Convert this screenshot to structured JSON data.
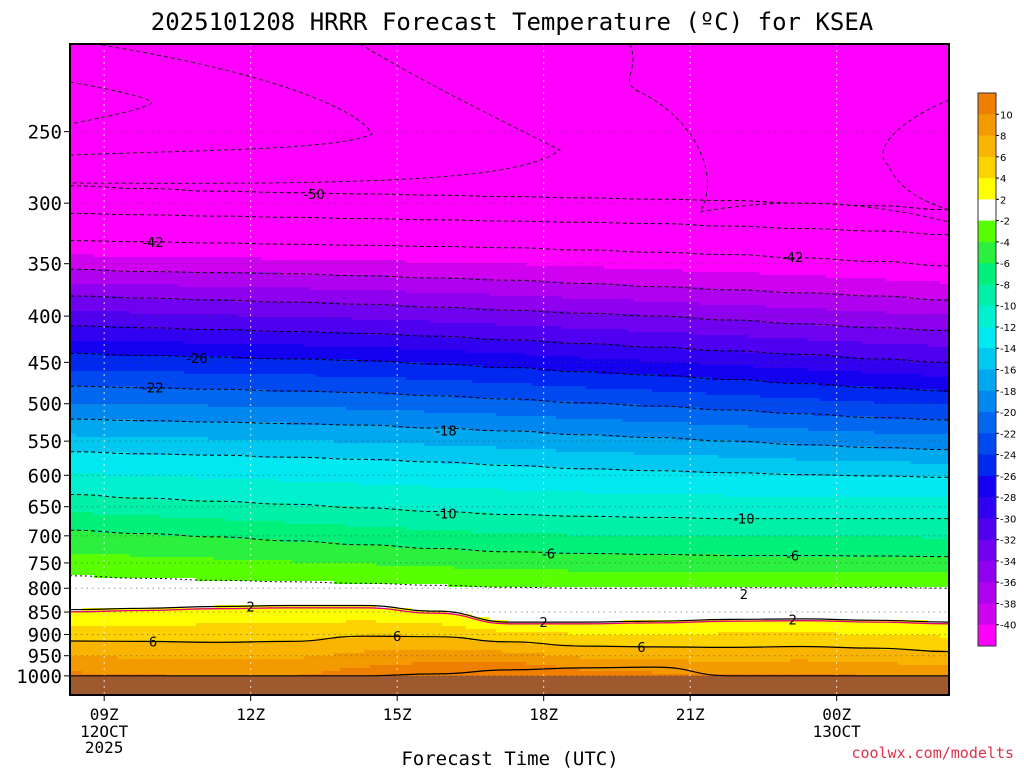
{
  "chart_data": {
    "type": "contour",
    "title": "2025101208 HRRR Forecast Temperature (ºC) for KSEA",
    "xlabel": "Forecast Time (UTC)",
    "ylabel": "",
    "credit": "coolwx.com/modelts",
    "y_axis": {
      "scale": "log",
      "reversed": true,
      "ticks": [
        250,
        300,
        350,
        400,
        450,
        500,
        550,
        600,
        650,
        700,
        750,
        800,
        850,
        900,
        950,
        1000
      ],
      "range": [
        200,
        1050
      ]
    },
    "x_axis": {
      "range_hours": [
        -0.7,
        17.3
      ],
      "ticks": [
        {
          "hour": 0,
          "label": "09Z",
          "sub": [
            "12OCT",
            "2025"
          ]
        },
        {
          "hour": 3,
          "label": "12Z",
          "sub": []
        },
        {
          "hour": 6,
          "label": "15Z",
          "sub": []
        },
        {
          "hour": 9,
          "label": "18Z",
          "sub": []
        },
        {
          "hour": 12,
          "label": "21Z",
          "sub": []
        },
        {
          "hour": 15,
          "label": "00Z",
          "sub": [
            "13OCT"
          ]
        }
      ]
    },
    "hours": [
      -0.7,
      0.8,
      2.3,
      3.8,
      5.3,
      6.8,
      8.3,
      9.8,
      11.3,
      12.8,
      14.3,
      15.8,
      17.3
    ],
    "isotherms": [
      {
        "temp": -50,
        "p": [
          287,
          289,
          291,
          292,
          293,
          294,
          295,
          296,
          297,
          298,
          300,
          302,
          305
        ]
      },
      {
        "temp": -46,
        "p": [
          308,
          309,
          310,
          311,
          312,
          313,
          314,
          315,
          316,
          318,
          320,
          322,
          325
        ]
      },
      {
        "temp": -42,
        "p": [
          330,
          331,
          332,
          333,
          334,
          335,
          336,
          338,
          340,
          342,
          345,
          348,
          352
        ]
      },
      {
        "temp": -38,
        "p": [
          355,
          357,
          358,
          359,
          361,
          363,
          365,
          368,
          371,
          374,
          377,
          380,
          384
        ]
      },
      {
        "temp": -34,
        "p": [
          380,
          382,
          384,
          386,
          388,
          391,
          394,
          397,
          400,
          404,
          408,
          412,
          415
        ]
      },
      {
        "temp": -30,
        "p": [
          410,
          412,
          414,
          416,
          418,
          421,
          425,
          429,
          433,
          437,
          441,
          446,
          450
        ]
      },
      {
        "temp": -26,
        "p": [
          440,
          442,
          444,
          446,
          448,
          452,
          456,
          461,
          465,
          470,
          475,
          480,
          484
        ]
      },
      {
        "temp": -22,
        "p": [
          478,
          480,
          482,
          484,
          486,
          490,
          494,
          499,
          503,
          508,
          513,
          518,
          521
        ]
      },
      {
        "temp": -18,
        "p": [
          520,
          522,
          524,
          526,
          528,
          532,
          536,
          541,
          545,
          550,
          555,
          559,
          562
        ]
      },
      {
        "temp": -14,
        "p": [
          565,
          568,
          570,
          573,
          576,
          580,
          585,
          590,
          593,
          596,
          599,
          601,
          603
        ]
      },
      {
        "temp": -10,
        "p": [
          630,
          636,
          641,
          646,
          652,
          658,
          663,
          666,
          668,
          670,
          670,
          670,
          670
        ]
      },
      {
        "temp": -6,
        "p": [
          690,
          696,
          702,
          709,
          716,
          723,
          729,
          732,
          734,
          736,
          736,
          737,
          738
        ]
      },
      {
        "temp": -2,
        "p": [
          775,
          780,
          784,
          787,
          790,
          794,
          798,
          800,
          800,
          799,
          799,
          798,
          800
        ]
      },
      {
        "temp": 2,
        "p": [
          845,
          842,
          838,
          836,
          836,
          848,
          872,
          872,
          870,
          866,
          865,
          868,
          872
        ]
      },
      {
        "temp": 6,
        "p": [
          915,
          916,
          918,
          916,
          904,
          905,
          917,
          927,
          929,
          930,
          928,
          932,
          940
        ]
      }
    ],
    "surface_warm": {
      "temp": 10,
      "p": [
        1000,
        1000,
        1000,
        1000,
        1000,
        995,
        985,
        980,
        978,
        1000,
        1000,
        1000,
        1000
      ]
    },
    "contour_labels": [
      {
        "text": "-50",
        "hour": 4.3,
        "p": 293
      },
      {
        "text": "-42",
        "hour": 1.0,
        "p": 331
      },
      {
        "text": "-42",
        "hour": 14.1,
        "p": 344
      },
      {
        "text": "-26",
        "hour": 1.9,
        "p": 445
      },
      {
        "text": "-22",
        "hour": 1.0,
        "p": 480
      },
      {
        "text": "-18",
        "hour": 7.0,
        "p": 535
      },
      {
        "text": "-10",
        "hour": 7.0,
        "p": 661
      },
      {
        "text": "-10",
        "hour": 13.1,
        "p": 670
      },
      {
        "text": "-6",
        "hour": 9.1,
        "p": 732
      },
      {
        "text": "-6",
        "hour": 14.1,
        "p": 736
      },
      {
        "text": "2",
        "hour": 3.0,
        "p": 838
      },
      {
        "text": "2",
        "hour": 9.0,
        "p": 872
      },
      {
        "text": "2",
        "hour": 13.1,
        "p": 812
      },
      {
        "text": "2",
        "hour": 14.1,
        "p": 866
      },
      {
        "text": "6",
        "hour": 1.0,
        "p": 916
      },
      {
        "text": "6",
        "hour": 6.0,
        "p": 904
      },
      {
        "text": "6",
        "hour": 11.0,
        "p": 929
      }
    ],
    "colorbar": {
      "ticks": [
        "10",
        "8",
        "6",
        "4",
        "2",
        "-2",
        "-4",
        "-6",
        "-8",
        "-10",
        "-12",
        "-14",
        "-16",
        "-18",
        "-20",
        "-22",
        "-24",
        "-26",
        "-28",
        "-30",
        "-32",
        "-34",
        "-36",
        "-38",
        "-40"
      ],
      "colors": [
        "#ee7f00",
        "#f39a00",
        "#f8b400",
        "#fcd300",
        "#fefe00",
        "#ffffff",
        "#58ff00",
        "#2cf03e",
        "#00f07a",
        "#00f0a8",
        "#00f0d0",
        "#00e8f0",
        "#00c8f0",
        "#00a8f0",
        "#0088f0",
        "#0068f0",
        "#0048f0",
        "#0028f0",
        "#1400f0",
        "#3200f0",
        "#5000f0",
        "#7000f0",
        "#9000f0",
        "#b000f0",
        "#d000f0",
        "#ff00ff"
      ]
    },
    "ground_color": "#9e5a2e",
    "grid": "dotted"
  }
}
